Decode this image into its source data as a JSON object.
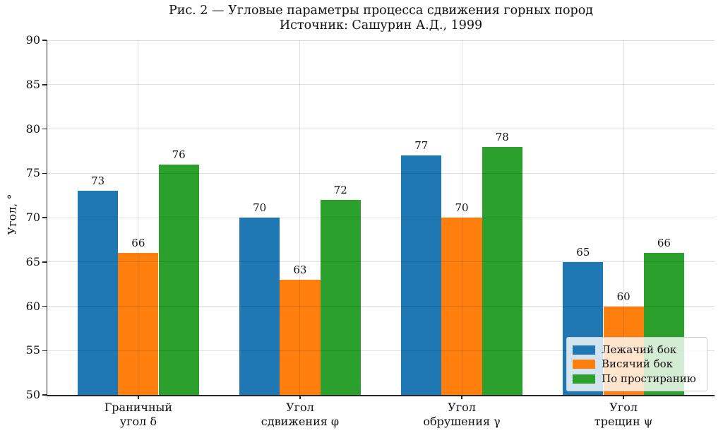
{
  "title": {
    "line1": "Рис. 2 — Угловые параметры процесса сдвижения горных пород",
    "line2": "Источник: Сашурин А.Д., 1999"
  },
  "chart_data": {
    "type": "bar",
    "title": "Рис. 2 — Угловые параметры процесса сдвижения горных пород\nИсточник: Сашурин А.Д., 1999",
    "categories": [
      "Граничный\nугол δ",
      "Угол\nсдвижения φ",
      "Угол\nобрушения γ",
      "Угол\nтрещин ψ"
    ],
    "series": [
      {
        "name": "Лежачий бок",
        "color": "#1f77b4",
        "values": [
          73,
          70,
          77,
          65
        ]
      },
      {
        "name": "Висячий бок",
        "color": "#ff7f0e",
        "values": [
          66,
          63,
          70,
          60
        ]
      },
      {
        "name": "По простиранию",
        "color": "#2ca02c",
        "values": [
          76,
          72,
          78,
          66
        ]
      }
    ],
    "xlabel": "",
    "ylabel": "Угол, °",
    "ylim": [
      50,
      90
    ],
    "yticks": [
      50,
      55,
      60,
      65,
      70,
      75,
      80,
      85,
      90
    ],
    "bar_value_labels": true,
    "grid": true,
    "legend_position": "lower right",
    "legend_entries": [
      "Лежачий бок",
      "Висячий бок",
      "По простиранию"
    ]
  },
  "colors": {
    "spine": "#262626",
    "grid": "rgba(0,0,0,0.12)",
    "text": "#111111"
  }
}
